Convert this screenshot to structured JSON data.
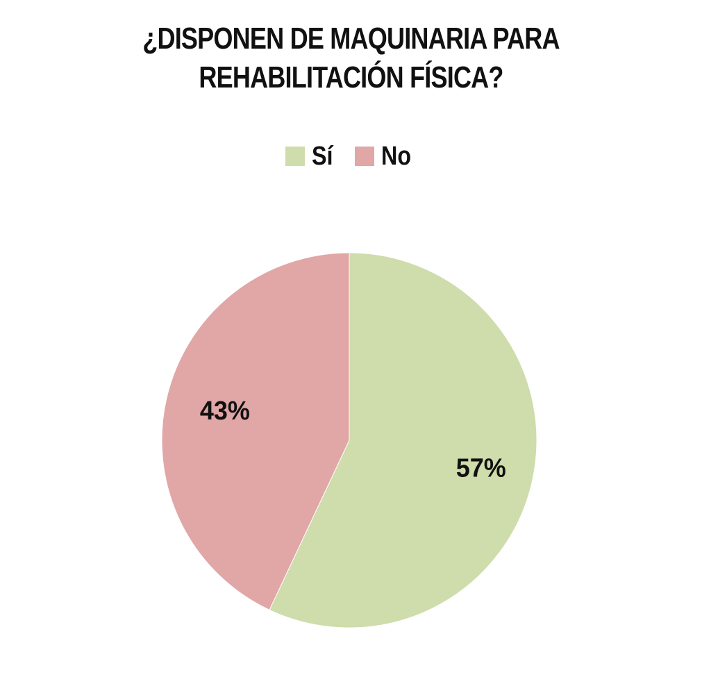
{
  "chart_data": {
    "type": "pie",
    "title_lines": [
      "¿DISPONEN DE MAQUINARIA PARA",
      "REHABILITACIÓN FÍSICA?"
    ],
    "legend_position": "top",
    "start_angle_deg": 0,
    "direction": "clockwise",
    "slices": [
      {
        "label": "Sí",
        "value": 57,
        "value_label": "57%",
        "color": "#cfdcab"
      },
      {
        "label": "No",
        "value": 43,
        "value_label": "43%",
        "color": "#e1a6a6"
      }
    ]
  }
}
